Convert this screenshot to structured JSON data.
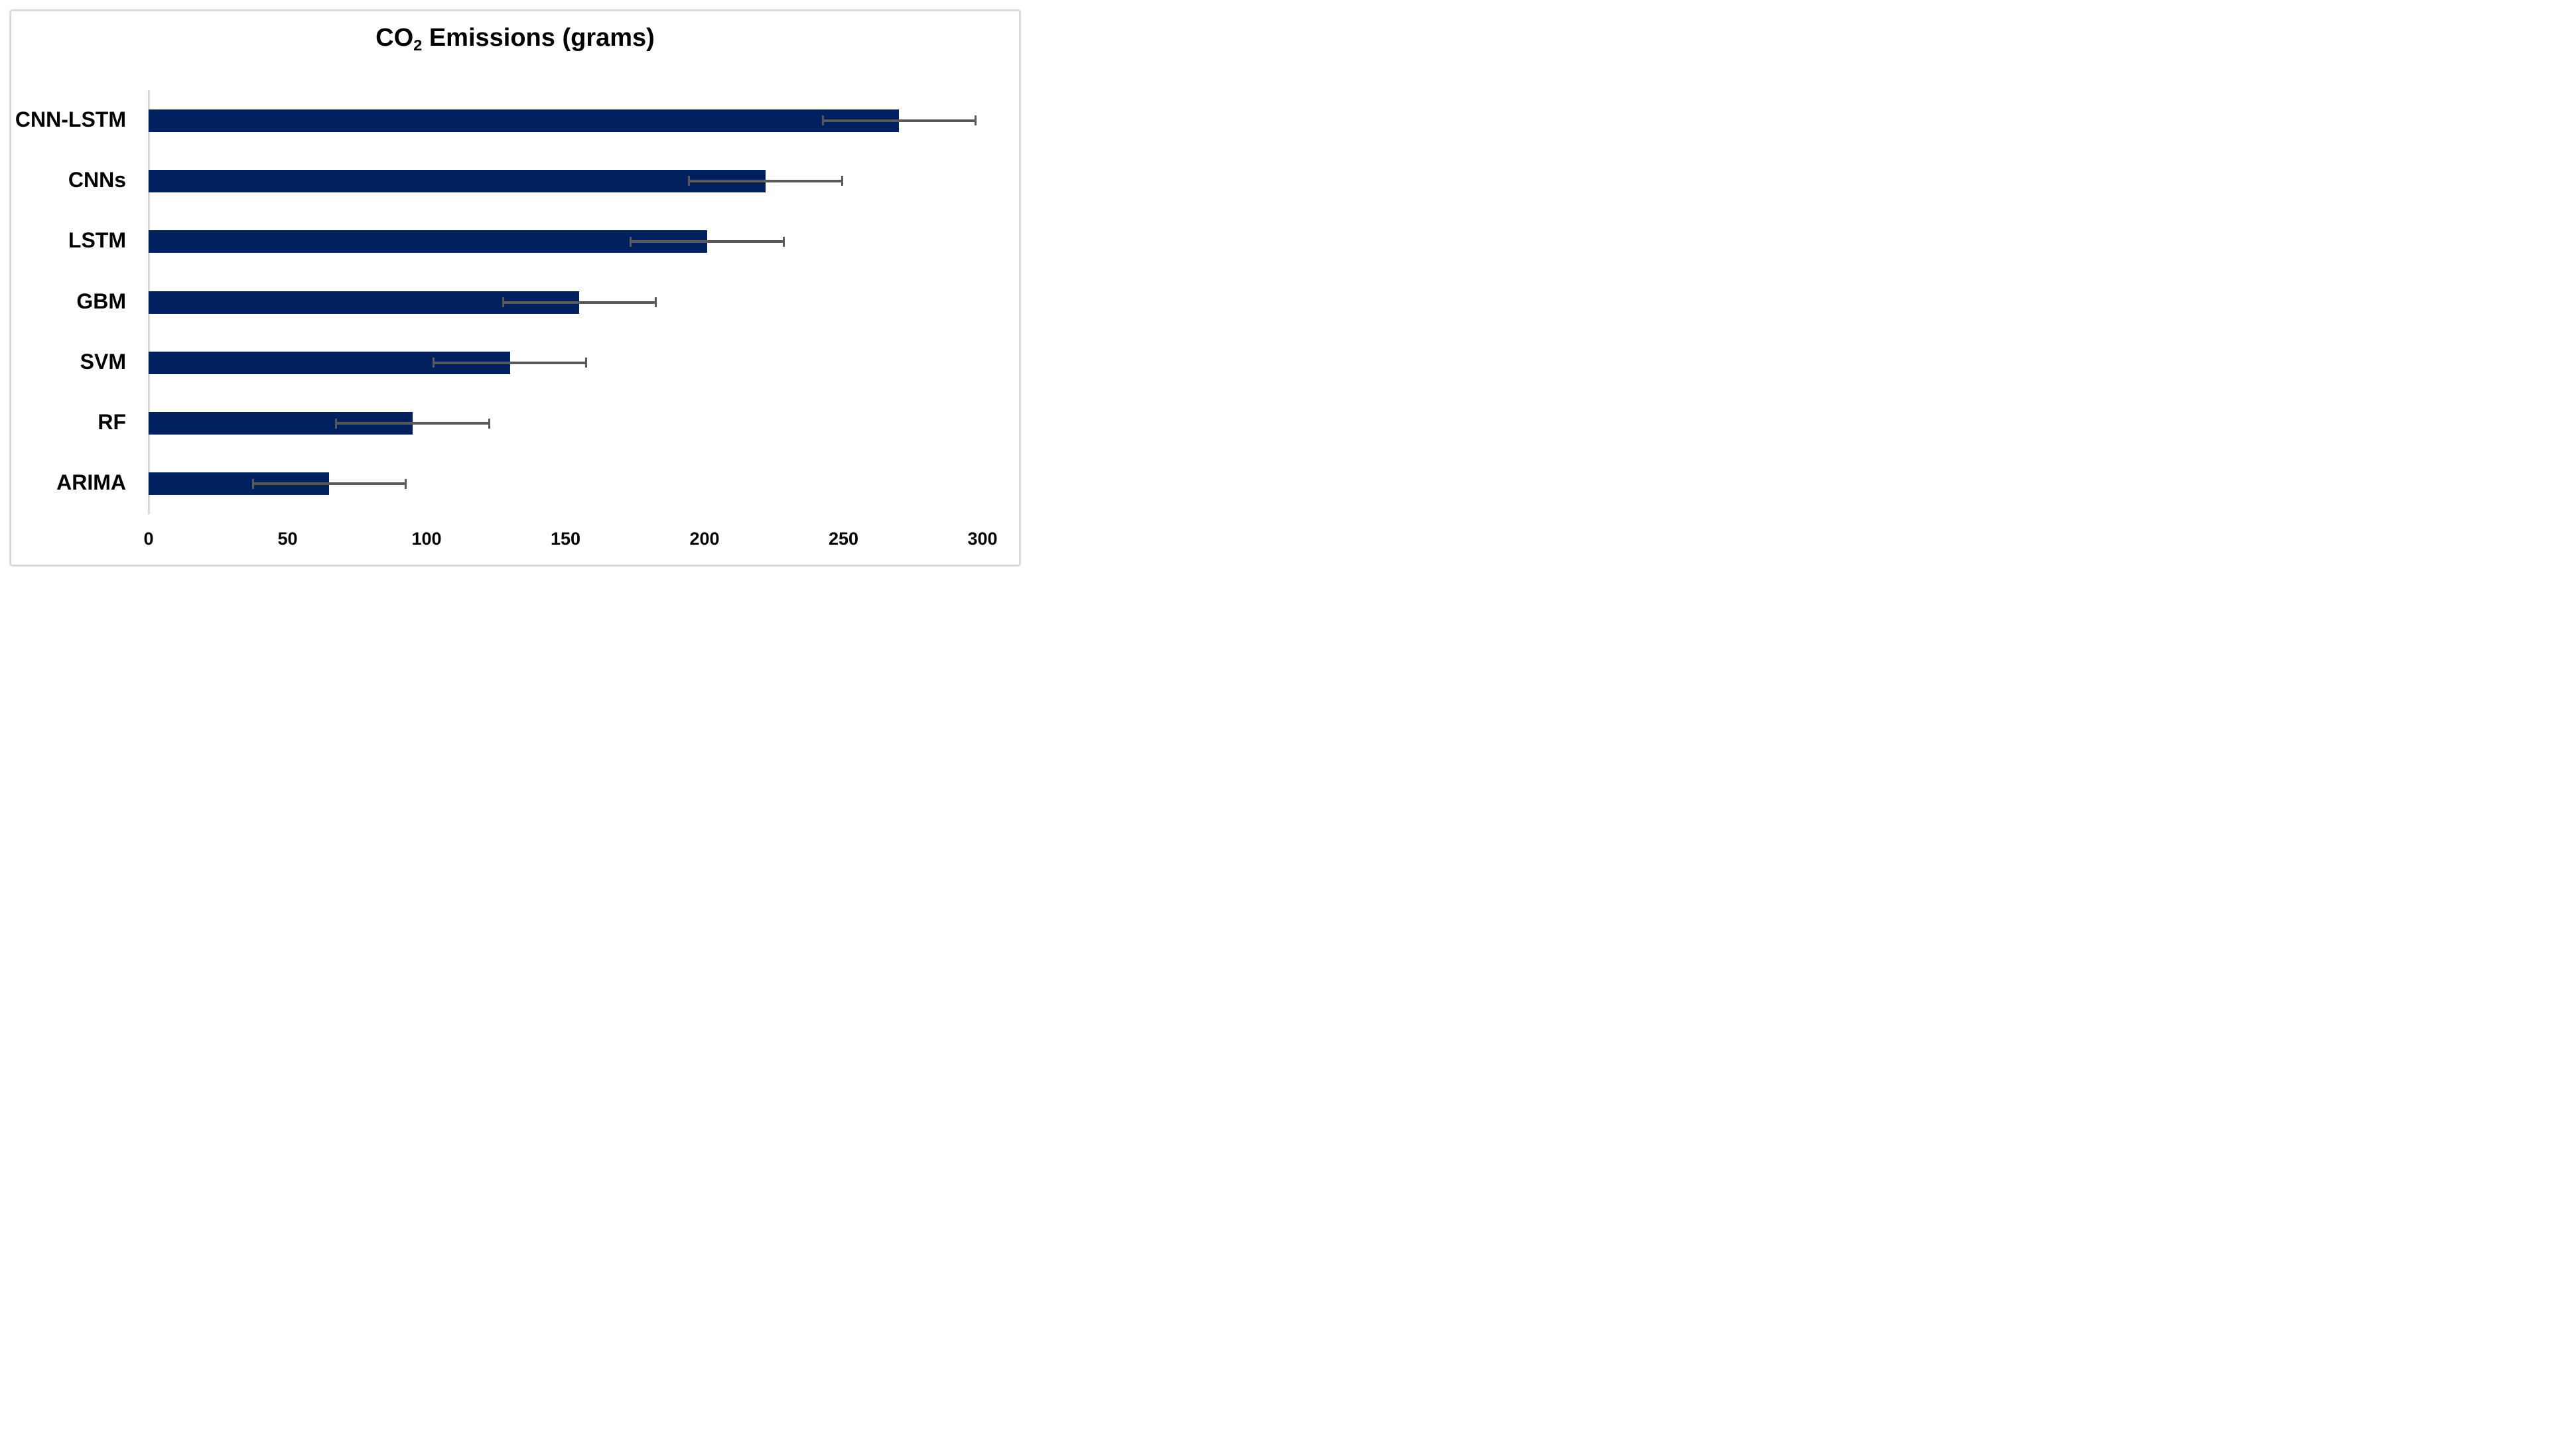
{
  "title_parts": {
    "prefix": "CO",
    "subscript": "2",
    "suffix": " Emissions (grams)"
  },
  "chart_data": {
    "type": "bar",
    "orientation": "horizontal",
    "title": "CO₂ Emissions (grams)",
    "categories": [
      "CNN-LSTM",
      "CNNs",
      "LSTM",
      "GBM",
      "SVM",
      "RF",
      "ARIMA"
    ],
    "values": [
      270,
      222,
      201,
      155,
      130,
      95,
      65
    ],
    "error_bars": [
      27.5,
      27.5,
      27.5,
      27.5,
      27.5,
      27.5,
      27.5
    ],
    "xlabel": "",
    "ylabel": "",
    "xlim": [
      0,
      300
    ],
    "x_ticks": [
      0,
      50,
      100,
      150,
      200,
      250,
      300
    ],
    "grid": false,
    "legend": "none",
    "colors": {
      "bar": "#002060",
      "error_bar": "#595959",
      "axis_line": "#d9d9d9",
      "frame_border": "#d9d9d9",
      "text": "#000000",
      "background": "#ffffff"
    }
  }
}
